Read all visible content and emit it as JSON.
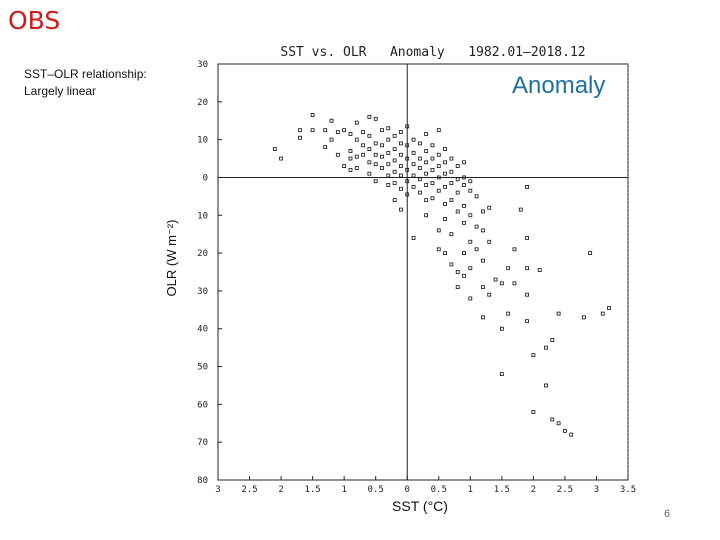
{
  "slide": {
    "title": "OBS",
    "note_line1": "SST–OLR relationship:",
    "note_line2": "Largely linear",
    "badge": "Anomaly",
    "page_number": "6"
  },
  "chart_data": {
    "type": "scatter",
    "title": "SST vs. OLR   Anomaly   1982.01–2018.12",
    "xlabel": "SST (°C)",
    "ylabel": "OLR (W m⁻²)",
    "xlim": [
      -3,
      3.5
    ],
    "ylim": [
      -80,
      30
    ],
    "xticks": [
      -3,
      -2.5,
      -2,
      -1.5,
      -1,
      -0.5,
      0,
      0.5,
      1,
      1.5,
      2,
      2.5,
      3,
      3.5
    ],
    "xtick_labels": [
      "3",
      "2.5",
      "2",
      "1.5",
      "1",
      "0.5",
      "0",
      "0.5",
      "1",
      "1.5",
      "2",
      "2.5",
      "3",
      "3.5"
    ],
    "yticks": [
      30,
      20,
      10,
      0,
      -10,
      -20,
      -30,
      -40,
      -50,
      -60,
      -70,
      -80
    ],
    "ytick_labels": [
      "30",
      "20",
      "10",
      "0",
      "10",
      "20",
      "30",
      "40",
      "50",
      "60",
      "70",
      "80"
    ],
    "zero_lines": true,
    "grid": false,
    "marker": "open-square",
    "points": [
      [
        -2.1,
        7.5
      ],
      [
        -2.0,
        5.0
      ],
      [
        -1.7,
        12.5
      ],
      [
        -1.7,
        10.5
      ],
      [
        -1.5,
        16.5
      ],
      [
        -1.5,
        12.5
      ],
      [
        -1.3,
        12.5
      ],
      [
        -1.3,
        8.0
      ],
      [
        -1.2,
        15.0
      ],
      [
        -1.2,
        10.0
      ],
      [
        -1.1,
        12.0
      ],
      [
        -1.1,
        6.0
      ],
      [
        -1.0,
        12.5
      ],
      [
        -1.0,
        3.0
      ],
      [
        -0.9,
        11.5
      ],
      [
        -0.9,
        7.0
      ],
      [
        -0.9,
        5.0
      ],
      [
        -0.9,
        2.0
      ],
      [
        -0.8,
        14.5
      ],
      [
        -0.8,
        10.0
      ],
      [
        -0.8,
        5.5
      ],
      [
        -0.8,
        2.5
      ],
      [
        -0.7,
        12.0
      ],
      [
        -0.7,
        8.5
      ],
      [
        -0.7,
        6.0
      ],
      [
        -0.6,
        16.0
      ],
      [
        -0.6,
        11.0
      ],
      [
        -0.6,
        7.5
      ],
      [
        -0.6,
        4.0
      ],
      [
        -0.6,
        1.0
      ],
      [
        -0.5,
        15.5
      ],
      [
        -0.5,
        9.0
      ],
      [
        -0.5,
        6.0
      ],
      [
        -0.5,
        3.5
      ],
      [
        -0.5,
        -1.0
      ],
      [
        -0.4,
        12.5
      ],
      [
        -0.4,
        8.5
      ],
      [
        -0.4,
        5.5
      ],
      [
        -0.4,
        2.5
      ],
      [
        -0.3,
        13.0
      ],
      [
        -0.3,
        10.0
      ],
      [
        -0.3,
        6.5
      ],
      [
        -0.3,
        3.5
      ],
      [
        -0.3,
        0.5
      ],
      [
        -0.3,
        -2.0
      ],
      [
        -0.2,
        11.0
      ],
      [
        -0.2,
        7.5
      ],
      [
        -0.2,
        4.5
      ],
      [
        -0.2,
        1.5
      ],
      [
        -0.2,
        -1.5
      ],
      [
        -0.2,
        -6.0
      ],
      [
        -0.1,
        12.0
      ],
      [
        -0.1,
        9.0
      ],
      [
        -0.1,
        6.0
      ],
      [
        -0.1,
        3.0
      ],
      [
        -0.1,
        0.5
      ],
      [
        -0.1,
        -3.0
      ],
      [
        -0.1,
        -8.5
      ],
      [
        0.0,
        13.5
      ],
      [
        0.0,
        8.5
      ],
      [
        0.0,
        5.0
      ],
      [
        0.0,
        2.0
      ],
      [
        0.0,
        -1.0
      ],
      [
        0.0,
        -4.5
      ],
      [
        0.1,
        10.0
      ],
      [
        0.1,
        6.5
      ],
      [
        0.1,
        3.5
      ],
      [
        0.1,
        0.5
      ],
      [
        0.1,
        -2.5
      ],
      [
        0.1,
        -16.0
      ],
      [
        0.2,
        9.0
      ],
      [
        0.2,
        5.0
      ],
      [
        0.2,
        2.5
      ],
      [
        0.2,
        -0.5
      ],
      [
        0.2,
        -4.0
      ],
      [
        0.3,
        11.5
      ],
      [
        0.3,
        7.0
      ],
      [
        0.3,
        4.0
      ],
      [
        0.3,
        1.0
      ],
      [
        0.3,
        -2.0
      ],
      [
        0.3,
        -6.0
      ],
      [
        0.3,
        -10.0
      ],
      [
        0.4,
        8.5
      ],
      [
        0.4,
        5.0
      ],
      [
        0.4,
        2.0
      ],
      [
        0.4,
        -1.5
      ],
      [
        0.4,
        -5.5
      ],
      [
        0.5,
        12.5
      ],
      [
        0.5,
        6.0
      ],
      [
        0.5,
        3.0
      ],
      [
        0.5,
        0.0
      ],
      [
        0.5,
        -3.5
      ],
      [
        0.5,
        -14.0
      ],
      [
        0.5,
        -19.0
      ],
      [
        0.6,
        7.5
      ],
      [
        0.6,
        4.0
      ],
      [
        0.6,
        1.0
      ],
      [
        0.6,
        -2.5
      ],
      [
        0.6,
        -7.0
      ],
      [
        0.6,
        -11.0
      ],
      [
        0.6,
        -20.0
      ],
      [
        0.7,
        5.0
      ],
      [
        0.7,
        1.5
      ],
      [
        0.7,
        -1.5
      ],
      [
        0.7,
        -6.0
      ],
      [
        0.7,
        -15.0
      ],
      [
        0.7,
        -23.0
      ],
      [
        0.8,
        3.0
      ],
      [
        0.8,
        -0.5
      ],
      [
        0.8,
        -4.0
      ],
      [
        0.8,
        -9.0
      ],
      [
        0.8,
        -25.0
      ],
      [
        0.8,
        -29.0
      ],
      [
        0.9,
        4.0
      ],
      [
        0.9,
        0.0
      ],
      [
        0.9,
        -2.0
      ],
      [
        0.9,
        -7.5
      ],
      [
        0.9,
        -12.0
      ],
      [
        0.9,
        -20.0
      ],
      [
        0.9,
        -26.0
      ],
      [
        1.0,
        -1.0
      ],
      [
        1.0,
        -3.5
      ],
      [
        1.0,
        -10.0
      ],
      [
        1.0,
        -17.0
      ],
      [
        1.0,
        -24.0
      ],
      [
        1.0,
        -32.0
      ],
      [
        1.1,
        -5.0
      ],
      [
        1.1,
        -13.0
      ],
      [
        1.1,
        -19.0
      ],
      [
        1.2,
        -9.0
      ],
      [
        1.2,
        -14.0
      ],
      [
        1.2,
        -22.0
      ],
      [
        1.2,
        -29.0
      ],
      [
        1.2,
        -37.0
      ],
      [
        1.3,
        -8.0
      ],
      [
        1.3,
        -17.0
      ],
      [
        1.3,
        -31.0
      ],
      [
        1.4,
        -27.0
      ],
      [
        1.5,
        -28.0
      ],
      [
        1.5,
        -40.0
      ],
      [
        1.5,
        -52.0
      ],
      [
        1.6,
        -24.0
      ],
      [
        1.6,
        -36.0
      ],
      [
        1.7,
        -19.0
      ],
      [
        1.7,
        -28.0
      ],
      [
        1.8,
        -8.5
      ],
      [
        1.9,
        -2.5
      ],
      [
        1.9,
        -16.0
      ],
      [
        1.9,
        -24.0
      ],
      [
        1.9,
        -31.0
      ],
      [
        1.9,
        -38.0
      ],
      [
        2.0,
        -47.0
      ],
      [
        2.0,
        -62.0
      ],
      [
        2.1,
        -24.5
      ],
      [
        2.2,
        -45.0
      ],
      [
        2.2,
        -55.0
      ],
      [
        2.3,
        -64.0
      ],
      [
        2.3,
        -43.0
      ],
      [
        2.4,
        -36.0
      ],
      [
        2.4,
        -65.0
      ],
      [
        2.5,
        -67.0
      ],
      [
        2.6,
        -68.0
      ],
      [
        2.8,
        -37.0
      ],
      [
        2.9,
        -20.0
      ],
      [
        3.1,
        -36.0
      ],
      [
        3.2,
        -34.5
      ]
    ]
  }
}
